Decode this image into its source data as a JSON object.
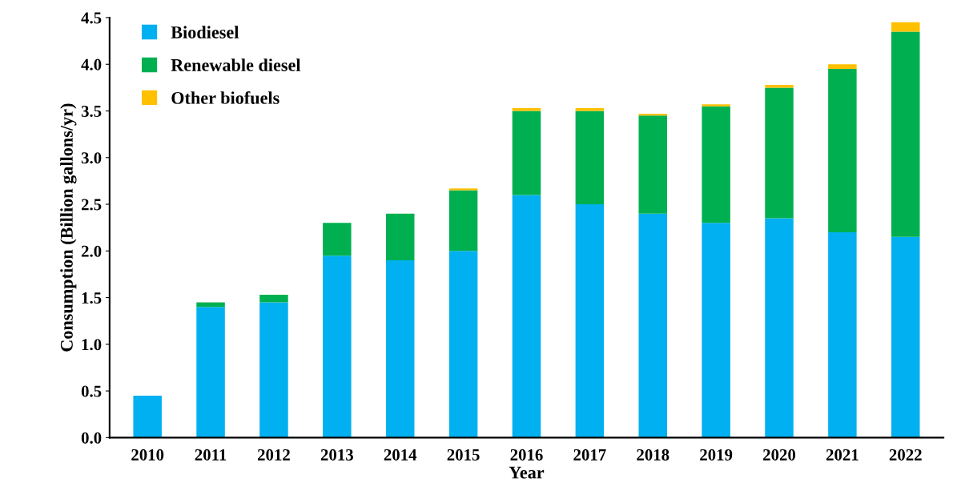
{
  "chart_data": {
    "type": "bar",
    "stacked": true,
    "xlabel": "Year",
    "ylabel": "Consumption (Billion gallons/yr)",
    "categories": [
      "2010",
      "2011",
      "2012",
      "2013",
      "2014",
      "2015",
      "2016",
      "2017",
      "2018",
      "2019",
      "2020",
      "2021",
      "2022"
    ],
    "series": [
      {
        "name": "Biodiesel",
        "color": "#00b0f0",
        "values": [
          0.45,
          1.4,
          1.45,
          1.95,
          1.9,
          2.0,
          2.6,
          2.5,
          2.4,
          2.3,
          2.35,
          2.2,
          2.15
        ]
      },
      {
        "name": "Renewable diesel",
        "color": "#00b050",
        "values": [
          null,
          0.05,
          0.08,
          0.35,
          0.5,
          0.65,
          0.9,
          1.0,
          1.05,
          1.25,
          1.4,
          1.75,
          2.2
        ]
      },
      {
        "name": "Other biofuels",
        "color": "#ffc000",
        "values": [
          null,
          null,
          null,
          null,
          null,
          0.02,
          0.03,
          0.03,
          0.02,
          0.02,
          0.03,
          0.05,
          0.1
        ]
      }
    ],
    "ylim": [
      0,
      4.5
    ],
    "yticks": [
      {
        "value": 0,
        "label": "0.0"
      },
      {
        "value": 0.5,
        "label": "0.5"
      },
      {
        "value": 1,
        "label": "1.0"
      },
      {
        "value": 1.5,
        "label": "1.5"
      },
      {
        "value": 2,
        "label": "2.0"
      },
      {
        "value": 2.5,
        "label": "2.5"
      },
      {
        "value": 3,
        "label": "3.0"
      },
      {
        "value": 3.5,
        "label": "3.5"
      },
      {
        "value": 4,
        "label": "4.0"
      },
      {
        "value": 4.5,
        "label": "4.5"
      }
    ],
    "grid": false,
    "legend": "top left"
  }
}
